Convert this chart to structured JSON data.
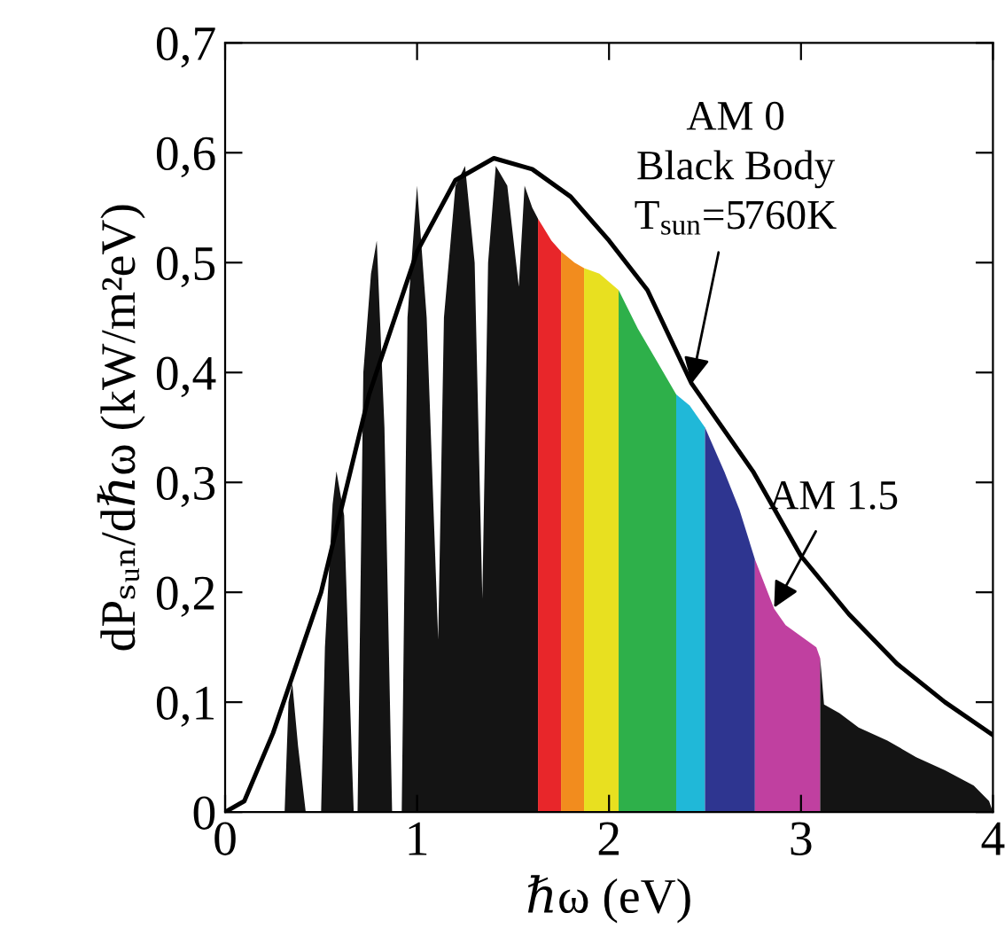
{
  "chart_data": {
    "type": "area",
    "xlabel": "ℏω (eV)",
    "ylabel": "dPₛᵤₙ/dℏω (kW/m²eV)",
    "xlim": [
      0,
      4
    ],
    "ylim": [
      0,
      0.7
    ],
    "xticks": [
      0,
      1,
      2,
      3,
      4
    ],
    "yticks": [
      0,
      {
        "value": 0.1,
        "label": "0,1"
      },
      {
        "value": 0.2,
        "label": "0,2"
      },
      {
        "value": 0.3,
        "label": "0,3"
      },
      {
        "value": 0.4,
        "label": "0,4"
      },
      {
        "value": 0.5,
        "label": "0,5"
      },
      {
        "value": 0.6,
        "label": "0,6"
      },
      {
        "value": 0.7,
        "label": "0,7"
      }
    ],
    "grid": false,
    "legend": false,
    "series": [
      {
        "type": "area",
        "color": "#141414",
        "x": [
          0.3,
          0.31,
          0.33,
          0.35,
          0.38,
          0.42,
          0.5,
          0.52,
          0.56,
          0.58,
          0.62,
          0.66,
          0.67,
          0.69,
          0.72,
          0.76,
          0.79,
          0.83,
          0.87,
          0.92,
          0.95,
          1.0,
          1.05,
          1.11,
          1.14,
          1.2,
          1.25,
          1.3,
          1.34,
          1.37,
          1.41,
          1.47,
          1.53,
          1.56,
          1.6,
          1.63
        ],
        "values": [
          0,
          0,
          0.1,
          0.117,
          0.06,
          0,
          0,
          0.15,
          0.28,
          0.31,
          0.27,
          0.05,
          0,
          0,
          0.4,
          0.49,
          0.52,
          0.35,
          0,
          0,
          0.45,
          0.57,
          0.45,
          0.157,
          0.45,
          0.57,
          0.588,
          0.5,
          0.194,
          0.5,
          0.588,
          0.57,
          0.478,
          0.57,
          0.55,
          0.54
        ]
      },
      {
        "type": "area",
        "color": "#e8262a",
        "x": [
          1.63,
          1.7,
          1.75
        ],
        "values": [
          0.54,
          0.52,
          0.51
        ]
      },
      {
        "type": "area",
        "color": "#f28c1e",
        "x": [
          1.75,
          1.82,
          1.87
        ],
        "values": [
          0.51,
          0.5,
          0.495
        ]
      },
      {
        "type": "area",
        "color": "#e8e020",
        "x": [
          1.87,
          1.95,
          2.05
        ],
        "values": [
          0.495,
          0.49,
          0.475
        ]
      },
      {
        "type": "area",
        "color": "#2eb04a",
        "x": [
          2.05,
          2.15,
          2.25,
          2.35
        ],
        "values": [
          0.475,
          0.44,
          0.41,
          0.38
        ]
      },
      {
        "type": "area",
        "color": "#20b8d8",
        "x": [
          2.35,
          2.42,
          2.5
        ],
        "values": [
          0.38,
          0.37,
          0.35
        ]
      },
      {
        "type": "area",
        "color": "#2e3590",
        "x": [
          2.5,
          2.6,
          2.68,
          2.76
        ],
        "values": [
          0.35,
          0.31,
          0.275,
          0.23
        ]
      },
      {
        "type": "area",
        "color": "#c040a0",
        "x": [
          2.76,
          2.86,
          2.92,
          3.0,
          3.08,
          3.1
        ],
        "values": [
          0.23,
          0.185,
          0.17,
          0.16,
          0.15,
          0.14
        ]
      },
      {
        "type": "area",
        "color": "#141414",
        "x": [
          3.1,
          3.12,
          3.2,
          3.3,
          3.45,
          3.6,
          3.75,
          3.9,
          3.98,
          4.0
        ],
        "values": [
          0.14,
          0.098,
          0.09,
          0.077,
          0.065,
          0.05,
          0.038,
          0.024,
          0.01,
          0
        ]
      },
      {
        "type": "line",
        "color": "#000000",
        "x": [
          0,
          0.1,
          0.25,
          0.5,
          0.75,
          1.0,
          1.2,
          1.4,
          1.6,
          1.8,
          2.0,
          2.2,
          2.43,
          2.75,
          3.0,
          3.25,
          3.5,
          3.75,
          4.0
        ],
        "values": [
          0,
          0.01,
          0.072,
          0.2,
          0.38,
          0.51,
          0.575,
          0.595,
          0.585,
          0.56,
          0.52,
          0.475,
          0.39,
          0.31,
          0.233,
          0.18,
          0.135,
          0.1,
          0.07
        ]
      }
    ],
    "annotations": [
      {
        "text": "AM 0\nBlack Body\nT$_{sun}$=5760K",
        "x": 2.43,
        "y": 0.39
      },
      {
        "text": "AM 1.5",
        "x": 2.86,
        "y": 0.186
      }
    ]
  }
}
